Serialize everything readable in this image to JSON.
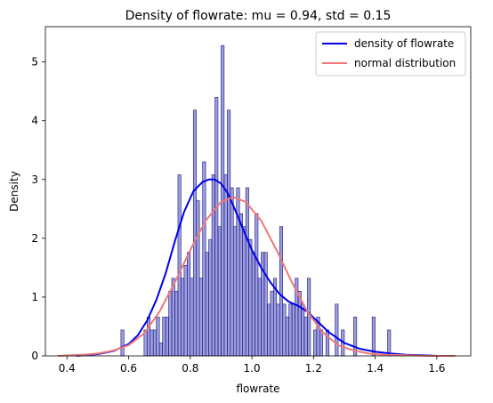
{
  "chart_data": {
    "type": "histogram",
    "title": "Density of flowrate: mu = 0.94, std = 0.15",
    "xlabel": "flowrate",
    "ylabel": "Density",
    "xlim": [
      0.33,
      1.71
    ],
    "ylim": [
      0,
      5.6
    ],
    "xticks": [
      "0.4",
      "0.6",
      "0.8",
      "1.0",
      "1.2",
      "1.4",
      "1.6"
    ],
    "yticks": [
      "0",
      "1",
      "2",
      "3",
      "4",
      "5"
    ],
    "grid": false,
    "legend_position": "top-right",
    "bin_width": 0.0099,
    "bins": [
      [
        0.58,
        0.44
      ],
      [
        0.655,
        0.44
      ],
      [
        0.665,
        0.66
      ],
      [
        0.675,
        0.44
      ],
      [
        0.685,
        0.44
      ],
      [
        0.695,
        0.66
      ],
      [
        0.705,
        0.22
      ],
      [
        0.715,
        0.66
      ],
      [
        0.725,
        0.66
      ],
      [
        0.735,
        1.1
      ],
      [
        0.745,
        1.32
      ],
      [
        0.755,
        1.1
      ],
      [
        0.765,
        3.08
      ],
      [
        0.775,
        1.32
      ],
      [
        0.785,
        1.54
      ],
      [
        0.795,
        1.76
      ],
      [
        0.805,
        1.32
      ],
      [
        0.815,
        4.18
      ],
      [
        0.825,
        2.64
      ],
      [
        0.835,
        1.32
      ],
      [
        0.845,
        3.3
      ],
      [
        0.855,
        1.76
      ],
      [
        0.865,
        1.98
      ],
      [
        0.875,
        3.08
      ],
      [
        0.885,
        4.4
      ],
      [
        0.895,
        2.2
      ],
      [
        0.905,
        5.28
      ],
      [
        0.915,
        3.08
      ],
      [
        0.925,
        4.18
      ],
      [
        0.935,
        2.86
      ],
      [
        0.945,
        2.2
      ],
      [
        0.955,
        2.86
      ],
      [
        0.965,
        2.42
      ],
      [
        0.975,
        2.2
      ],
      [
        0.985,
        2.86
      ],
      [
        0.995,
        1.98
      ],
      [
        1.005,
        1.76
      ],
      [
        1.015,
        2.42
      ],
      [
        1.025,
        1.32
      ],
      [
        1.035,
        1.76
      ],
      [
        1.045,
        1.76
      ],
      [
        1.055,
        0.88
      ],
      [
        1.065,
        1.1
      ],
      [
        1.075,
        1.32
      ],
      [
        1.085,
        0.88
      ],
      [
        1.095,
        2.2
      ],
      [
        1.105,
        0.88
      ],
      [
        1.115,
        0.66
      ],
      [
        1.125,
        0.88
      ],
      [
        1.135,
        0.88
      ],
      [
        1.145,
        1.32
      ],
      [
        1.155,
        1.1
      ],
      [
        1.165,
        0.88
      ],
      [
        1.175,
        0.66
      ],
      [
        1.185,
        1.32
      ],
      [
        1.205,
        0.44
      ],
      [
        1.215,
        0.66
      ],
      [
        1.225,
        0.44
      ],
      [
        1.245,
        0.44
      ],
      [
        1.275,
        0.88
      ],
      [
        1.295,
        0.44
      ],
      [
        1.335,
        0.66
      ],
      [
        1.395,
        0.66
      ],
      [
        1.445,
        0.44
      ]
    ],
    "series": [
      {
        "name": "density of flowrate",
        "color": "#0000ee",
        "x": [
          0.43,
          0.5,
          0.55,
          0.6,
          0.63,
          0.66,
          0.69,
          0.72,
          0.75,
          0.78,
          0.81,
          0.84,
          0.86,
          0.88,
          0.9,
          0.92,
          0.94,
          0.96,
          0.98,
          1.0,
          1.03,
          1.06,
          1.09,
          1.12,
          1.15,
          1.18,
          1.21,
          1.25,
          1.3,
          1.35,
          1.4,
          1.45,
          1.5,
          1.55,
          1.6
        ],
        "y": [
          0.0,
          0.03,
          0.08,
          0.2,
          0.35,
          0.6,
          0.95,
          1.4,
          1.95,
          2.45,
          2.8,
          2.96,
          3.0,
          3.0,
          2.93,
          2.78,
          2.55,
          2.3,
          2.05,
          1.8,
          1.5,
          1.25,
          1.05,
          0.92,
          0.85,
          0.75,
          0.6,
          0.4,
          0.22,
          0.12,
          0.07,
          0.04,
          0.02,
          0.01,
          0.0
        ]
      },
      {
        "name": "normal distribution",
        "color": "#f07878",
        "x": [
          0.37,
          0.45,
          0.5,
          0.55,
          0.6,
          0.65,
          0.7,
          0.75,
          0.8,
          0.85,
          0.9,
          0.94,
          0.98,
          1.03,
          1.08,
          1.13,
          1.18,
          1.23,
          1.28,
          1.33,
          1.38,
          1.43,
          1.5,
          1.58,
          1.66
        ],
        "y": [
          0.0,
          0.02,
          0.04,
          0.09,
          0.18,
          0.38,
          0.75,
          1.25,
          1.8,
          2.3,
          2.62,
          2.7,
          2.62,
          2.3,
          1.8,
          1.25,
          0.75,
          0.4,
          0.18,
          0.09,
          0.04,
          0.02,
          0.01,
          0.0,
          0.0
        ]
      }
    ]
  }
}
